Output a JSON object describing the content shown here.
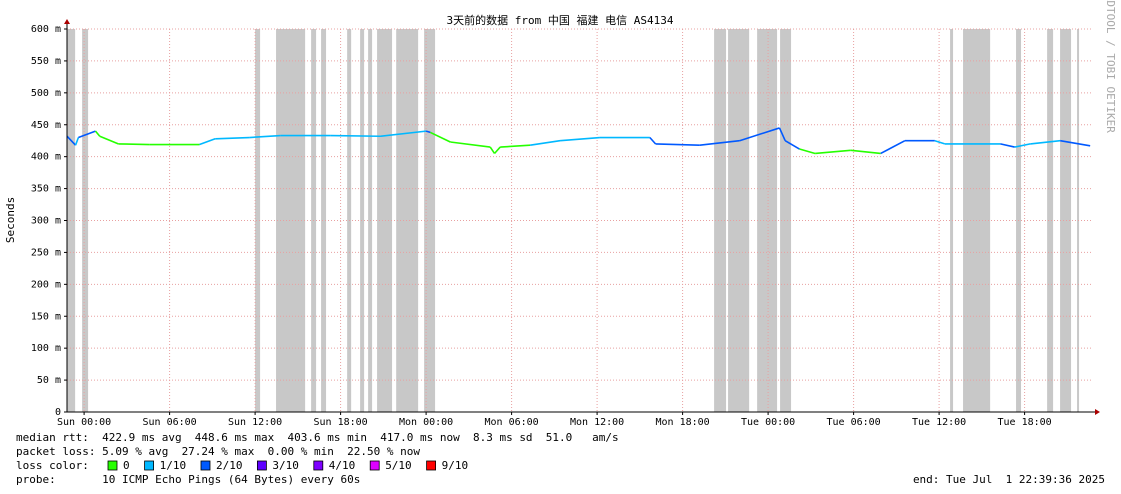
{
  "chart_data": {
    "type": "line",
    "title": "3天前的数据 from 中国 福建 电信 AS4134",
    "y_label": "Seconds",
    "watermark": "RRDTOOL / TOBI OETIKER",
    "xlim": [
      -1.2,
      70.8
    ],
    "xticks": [
      {
        "value": 0,
        "label": "Sun 00:00"
      },
      {
        "value": 6,
        "label": "Sun 06:00"
      },
      {
        "value": 12,
        "label": "Sun 12:00"
      },
      {
        "value": 18,
        "label": "Sun 18:00"
      },
      {
        "value": 24,
        "label": "Mon 00:00"
      },
      {
        "value": 30,
        "label": "Mon 06:00"
      },
      {
        "value": 36,
        "label": "Mon 12:00"
      },
      {
        "value": 42,
        "label": "Mon 18:00"
      },
      {
        "value": 48,
        "label": "Tue 00:00"
      },
      {
        "value": 54,
        "label": "Tue 06:00"
      },
      {
        "value": 60,
        "label": "Tue 12:00"
      },
      {
        "value": 66,
        "label": "Tue 18:00"
      }
    ],
    "ylim": [
      0,
      0.6
    ],
    "yticks": [
      0,
      {
        "value": 0.05,
        "label": "50 m"
      },
      {
        "value": 0.1,
        "label": "100 m"
      },
      {
        "value": 0.15,
        "label": "150 m"
      },
      {
        "value": 0.2,
        "label": "200 m"
      },
      {
        "value": 0.25,
        "label": "250 m"
      },
      {
        "value": 0.3,
        "label": "300 m"
      },
      {
        "value": 0.35,
        "label": "350 m"
      },
      {
        "value": 0.4,
        "label": "400 m"
      },
      {
        "value": 0.45,
        "label": "450 m"
      },
      {
        "value": 0.5,
        "label": "500 m"
      },
      {
        "value": 0.55,
        "label": "550 m"
      },
      {
        "value": 0.6,
        "label": "600 m"
      }
    ],
    "grid": true,
    "x": [
      -1.2,
      -0.6,
      -0.4,
      0.8,
      1.1,
      2.4,
      4.6,
      8.1,
      9.2,
      11.6,
      13.8,
      17.3,
      20.8,
      24.0,
      24.3,
      25.7,
      28.5,
      28.8,
      29.2,
      31.3,
      33.4,
      36.2,
      39.7,
      40.1,
      43.2,
      46.0,
      48.8,
      49.2,
      50.2,
      51.3,
      53.8,
      55.9,
      57.6,
      59.7,
      60.4,
      64.3,
      65.3,
      66.4,
      68.5,
      70.6
    ],
    "series": [
      {
        "name": "median rtt",
        "values": [
          0.432,
          0.418,
          0.43,
          0.44,
          0.432,
          0.42,
          0.419,
          0.419,
          0.428,
          0.43,
          0.433,
          0.433,
          0.432,
          0.44,
          0.438,
          0.423,
          0.415,
          0.405,
          0.415,
          0.418,
          0.425,
          0.43,
          0.43,
          0.42,
          0.418,
          0.425,
          0.445,
          0.425,
          0.412,
          0.405,
          0.41,
          0.405,
          0.425,
          0.425,
          0.42,
          0.42,
          0.415,
          0.42,
          0.425,
          0.417
        ],
        "loss": [
          2,
          2,
          1,
          2,
          0,
          0,
          0,
          0,
          1,
          1,
          1,
          1,
          1,
          1,
          2,
          0,
          0,
          0,
          0,
          0,
          1,
          1,
          1,
          2,
          2,
          2,
          2,
          2,
          2,
          0,
          0,
          0,
          2,
          2,
          1,
          1,
          2,
          1,
          1,
          2
        ]
      }
    ],
    "loss_bars": [
      [
        -1.19,
        -0.63
      ],
      [
        -0.14,
        0.28
      ],
      [
        12.0,
        12.35
      ],
      [
        13.47,
        15.51
      ],
      [
        15.93,
        16.28
      ],
      [
        16.63,
        16.98
      ],
      [
        18.46,
        18.74
      ],
      [
        19.37,
        19.65
      ],
      [
        19.93,
        20.21
      ],
      [
        20.56,
        21.61
      ],
      [
        21.9,
        23.44
      ],
      [
        23.86,
        24.63
      ],
      [
        44.21,
        45.05
      ],
      [
        45.19,
        46.67
      ],
      [
        47.23,
        48.63
      ],
      [
        48.84,
        49.61
      ],
      [
        60.77,
        60.98
      ],
      [
        61.68,
        63.58
      ],
      [
        65.4,
        65.75
      ],
      [
        67.58,
        68.0
      ],
      [
        68.49,
        69.26
      ],
      [
        69.68,
        69.82
      ]
    ],
    "stats": [
      "median rtt:  422.9 ms avg  448.6 ms max  403.6 ms min  417.0 ms now  8.3 ms sd  51.0   am/s",
      "packet loss: 5.09 % avg  27.24 % max  0.00 % min  22.50 % now"
    ],
    "loss_label": "loss color:",
    "loss_colors": [
      {
        "loss": 0,
        "label": "0",
        "color": "#26ff00"
      },
      {
        "loss": 1,
        "label": "1/10",
        "color": "#00b8ff"
      },
      {
        "loss": 2,
        "label": "2/10",
        "color": "#0059ff"
      },
      {
        "loss": 3,
        "label": "3/10",
        "color": "#5e00ff"
      },
      {
        "loss": 4,
        "label": "4/10",
        "color": "#7e00ff"
      },
      {
        "loss": 5,
        "label": "5/10",
        "color": "#dd00ff"
      },
      {
        "loss": 9,
        "label": "9/10",
        "color": "#ff0000"
      }
    ],
    "probe": "probe:       10 ICMP Echo Pings (64 Bytes) every 60s",
    "end": "end: Tue Jul  1 22:39:36 2025"
  }
}
